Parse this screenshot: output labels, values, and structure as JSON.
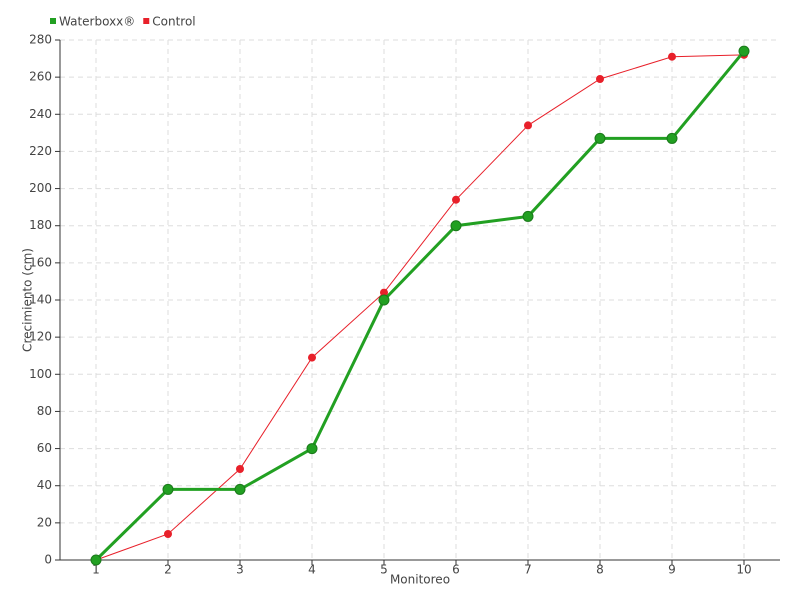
{
  "chart_data": {
    "type": "line",
    "x_label": "Monitoreo",
    "y_label": "Crecimiento (cm)",
    "x": [
      1,
      2,
      3,
      4,
      5,
      6,
      7,
      8,
      9,
      10
    ],
    "series": [
      {
        "name": "Waterboxx®",
        "color": "#22a022",
        "values": [
          0,
          38,
          38,
          60,
          140,
          180,
          185,
          227,
          227,
          274
        ]
      },
      {
        "name": "Control",
        "color": "#e8202a",
        "values": [
          0,
          14,
          49,
          109,
          144,
          194,
          234,
          259,
          271,
          272
        ]
      }
    ],
    "xlim": [
      0.5,
      10.5
    ],
    "xticks": [
      1,
      2,
      3,
      4,
      5,
      6,
      7,
      8,
      9,
      10
    ],
    "ylim": [
      0,
      280
    ],
    "yticks": [
      0,
      20,
      40,
      60,
      80,
      100,
      120,
      140,
      160,
      180,
      200,
      220,
      240,
      260,
      280
    ],
    "grid": true,
    "legend": "top-left"
  }
}
